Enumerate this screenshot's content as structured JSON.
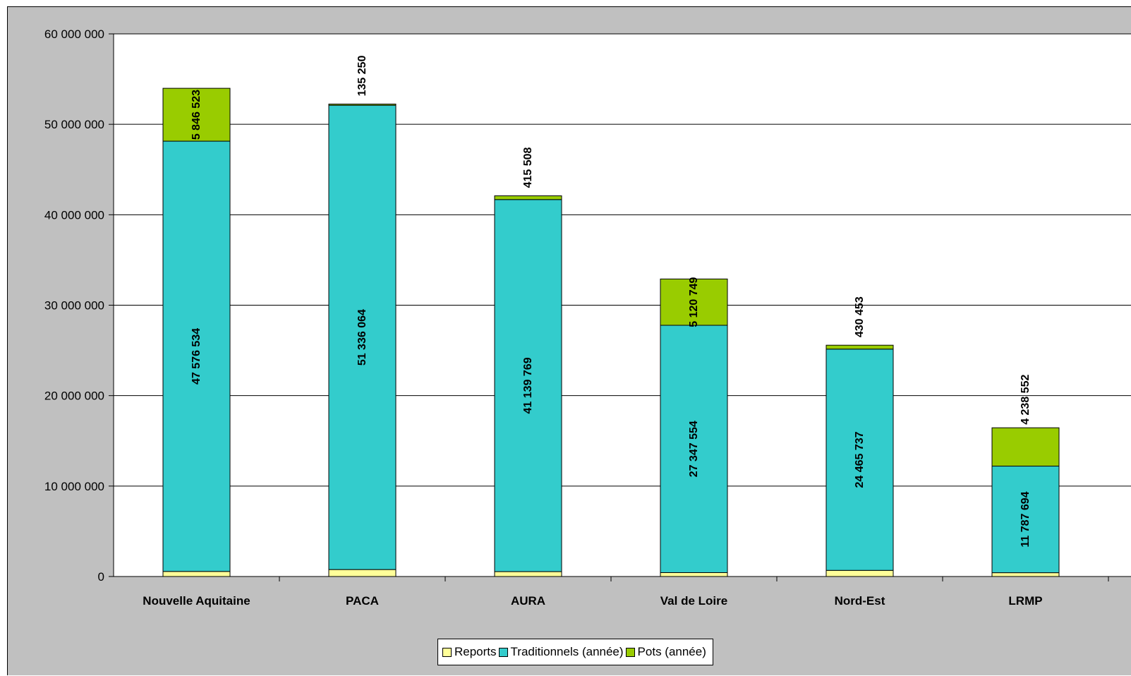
{
  "chart_data": {
    "type": "bar",
    "stacked": true,
    "categories": [
      "Nouvelle Aquitaine",
      "PACA",
      "AURA",
      "Val de Loire",
      "Nord-Est",
      "LRMP"
    ],
    "series": [
      {
        "name": "Reports",
        "color": "#ffff99",
        "values": [
          560000,
          770000,
          540000,
          430000,
          680000,
          420000
        ],
        "labels": [
          "",
          "",
          "",
          "",
          "",
          ""
        ]
      },
      {
        "name": "Traditionnels (année)",
        "color": "#33cccc",
        "values": [
          47576534,
          51336064,
          41139769,
          27347554,
          24465737,
          11787694
        ],
        "labels": [
          "47 576 534",
          "51 336 064",
          "41 139 769",
          "27 347 554",
          "24 465 737",
          "11 787 694"
        ]
      },
      {
        "name": "Pots (année)",
        "color": "#99cc00",
        "values": [
          5846523,
          135250,
          415508,
          5120749,
          430453,
          4238552
        ],
        "labels": [
          "5 846 523",
          "135 250",
          "415 508",
          "5 120 749",
          "430 453",
          "4 238 552"
        ]
      }
    ],
    "ylim": [
      0,
      60000000
    ],
    "yticks": [
      0,
      10000000,
      20000000,
      30000000,
      40000000,
      50000000,
      60000000
    ],
    "ytick_labels": [
      "0",
      "10 000 000",
      "20 000 000",
      "30 000 000",
      "40 000 000",
      "50 000 000",
      "60 000 000"
    ],
    "grid": true,
    "legend": "bottom",
    "title": "",
    "xlabel": "",
    "ylabel": ""
  }
}
